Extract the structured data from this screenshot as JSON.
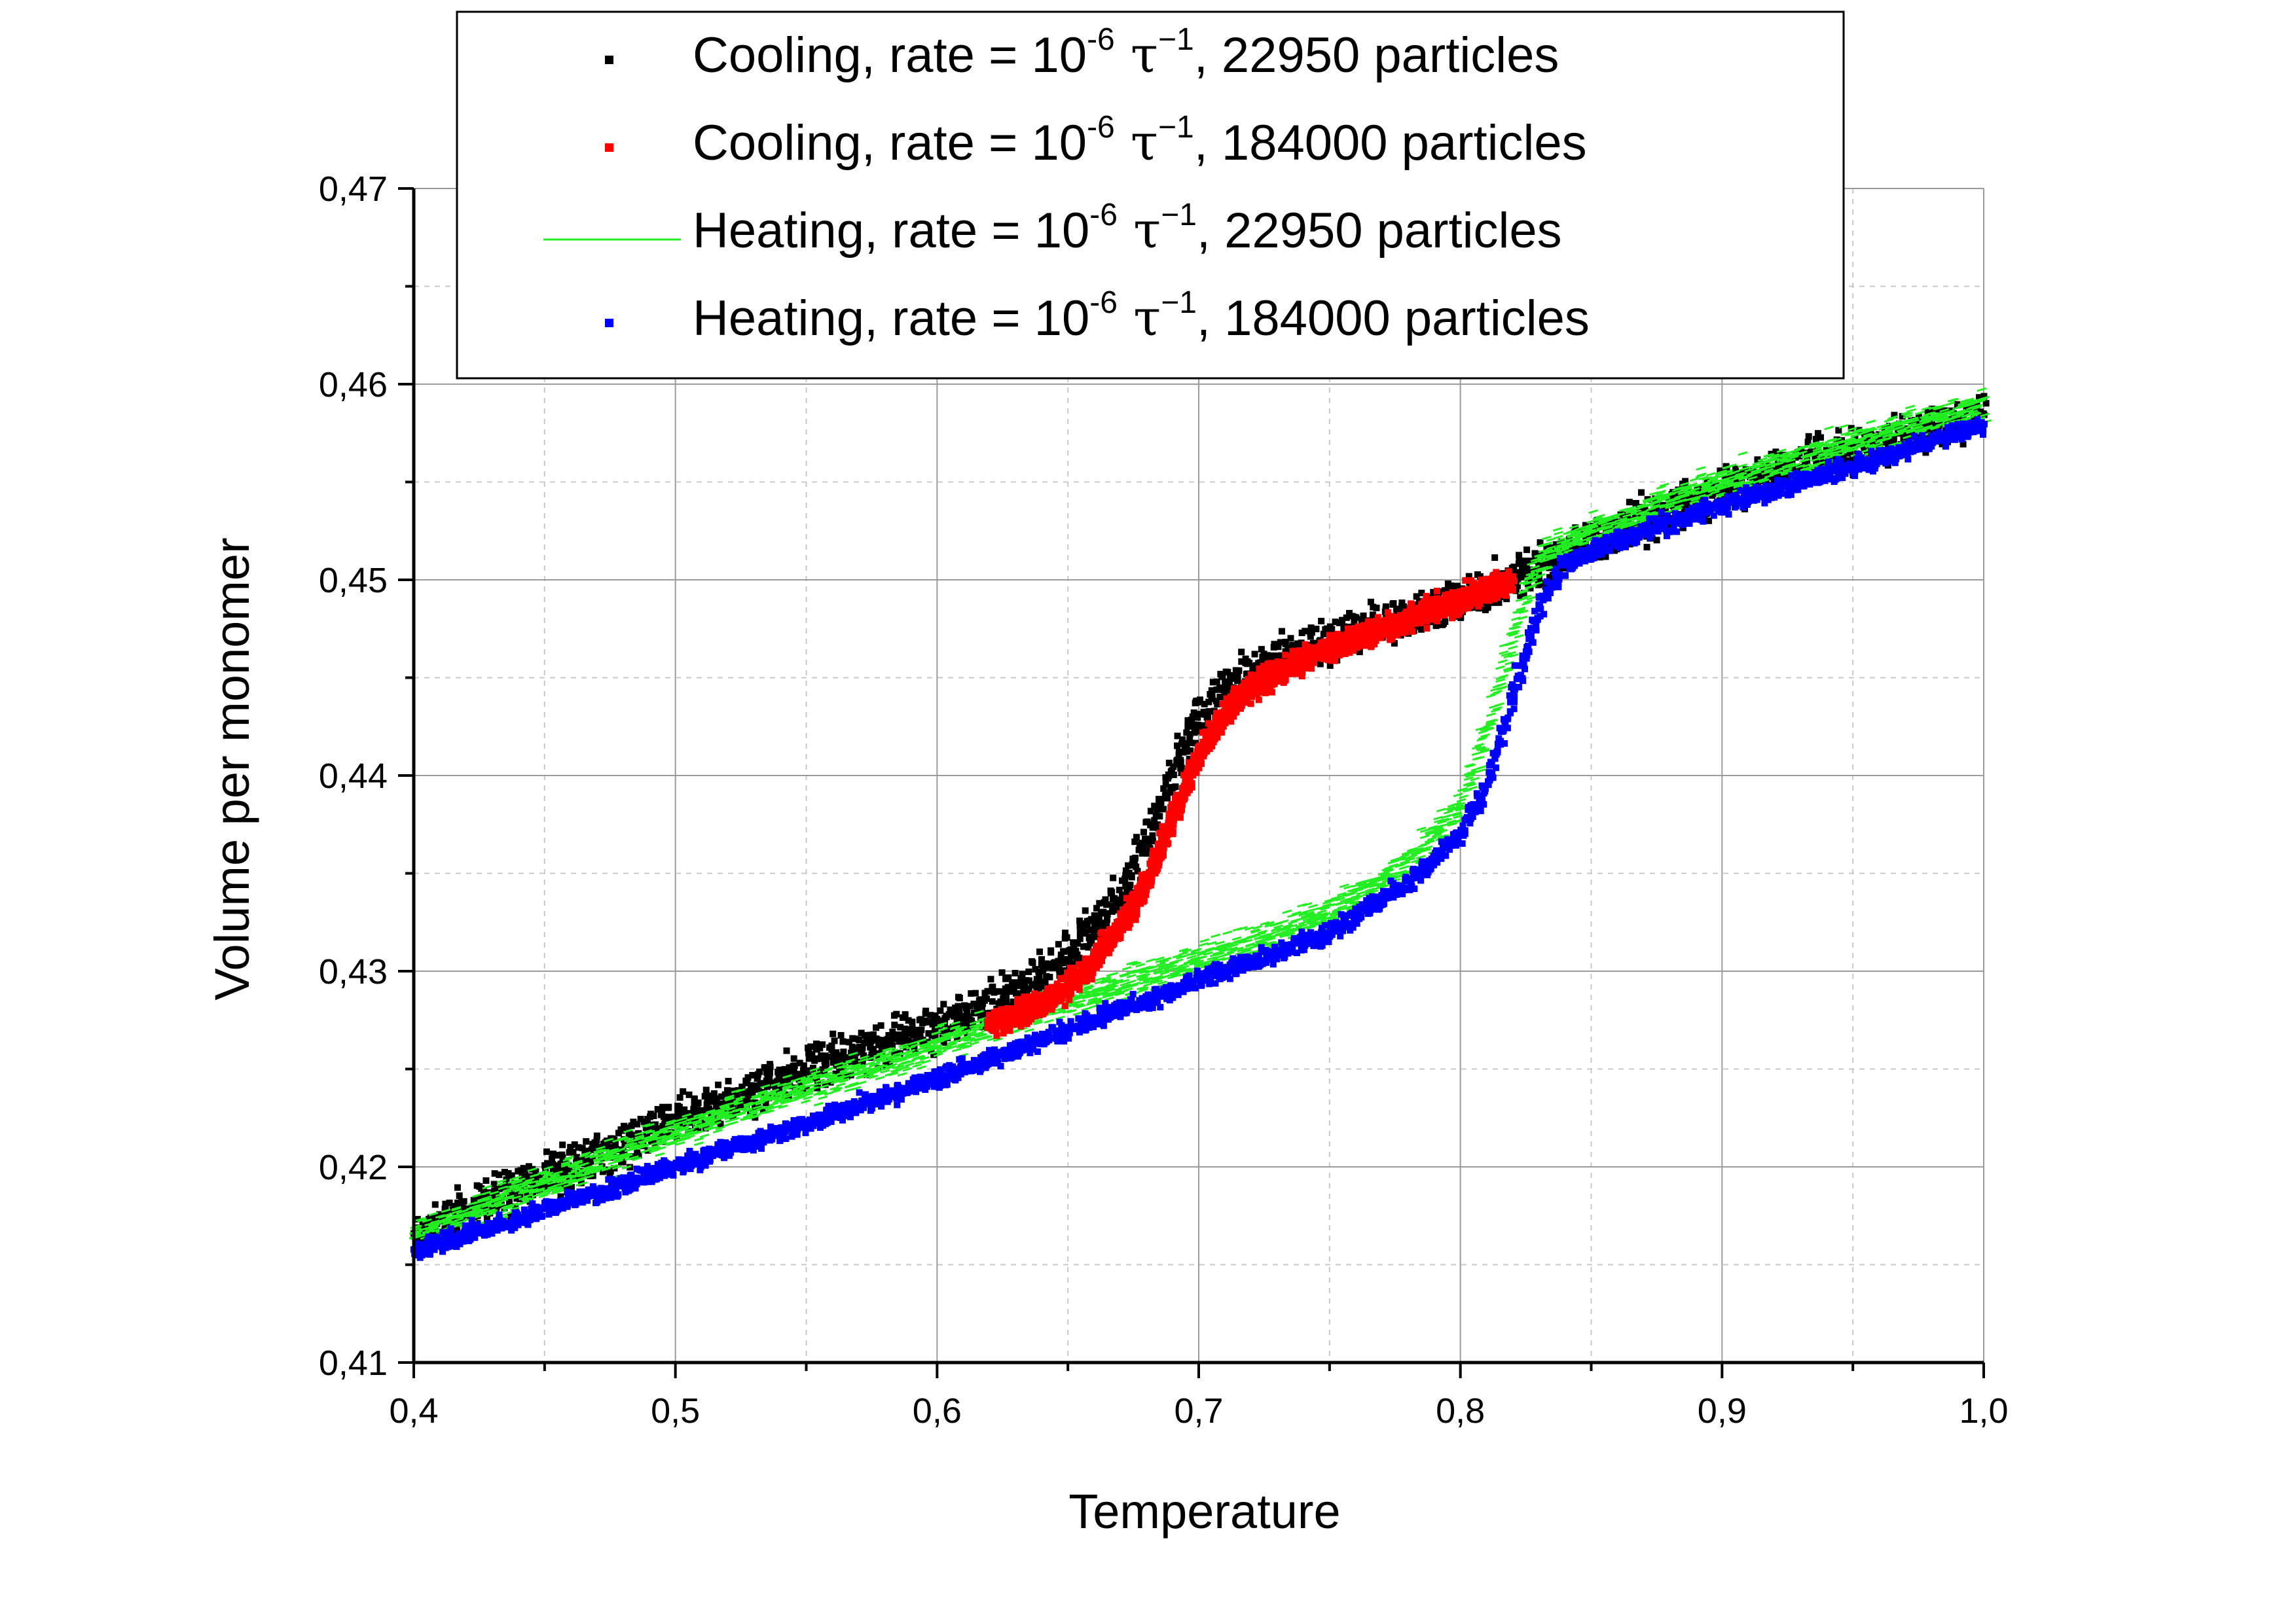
{
  "chart_data": {
    "type": "scatter",
    "title": "",
    "xlabel": "Temperature",
    "ylabel": "Volume per monomer",
    "xlim": [
      0.4,
      1.0
    ],
    "ylim": [
      0.41,
      0.47
    ],
    "xticks": [
      0.4,
      0.5,
      0.6,
      0.7,
      0.8,
      0.9,
      1.0
    ],
    "xtick_labels": [
      "0,4",
      "0,5",
      "0,6",
      "0,7",
      "0,8",
      "0,9",
      "1,0"
    ],
    "yticks": [
      0.41,
      0.42,
      0.43,
      0.44,
      0.45,
      0.46,
      0.47
    ],
    "ytick_labels": [
      "0,41",
      "0,42",
      "0,43",
      "0,44",
      "0,45",
      "0,46",
      "0,47"
    ],
    "grid": true,
    "legend_position": "top",
    "series": [
      {
        "name": "Cooling, rate = 10-6 τ−1, 22950 particles",
        "label_parts": {
          "prefix": "Cooling, rate = 10",
          "exp1": "-6",
          "tau": " τ",
          "exp2": "−1",
          "suffix": ", 22950 particles"
        },
        "color": "#000000",
        "marker": "square",
        "spread": 0.0016,
        "x": [
          0.4,
          0.45,
          0.5,
          0.55,
          0.6,
          0.62,
          0.64,
          0.66,
          0.67,
          0.68,
          0.69,
          0.7,
          0.71,
          0.72,
          0.74,
          0.76,
          0.78,
          0.8,
          0.82,
          0.84,
          0.86,
          0.9,
          0.95,
          1.0
        ],
        "y": [
          0.4165,
          0.4195,
          0.4223,
          0.425,
          0.4272,
          0.4283,
          0.4298,
          0.432,
          0.434,
          0.4368,
          0.44,
          0.4428,
          0.4445,
          0.4455,
          0.4465,
          0.4473,
          0.4482,
          0.449,
          0.45,
          0.4513,
          0.4525,
          0.4545,
          0.4567,
          0.4585
        ]
      },
      {
        "name": "Cooling, rate = 10-6 τ−1, 184000 particles",
        "label_parts": {
          "prefix": "Cooling, rate = 10",
          "exp1": "-6",
          "tau": " τ",
          "exp2": "−1",
          "suffix": ", 184000 particles"
        },
        "color": "#ff0000",
        "marker": "square",
        "spread": 0.0009,
        "x": [
          0.62,
          0.64,
          0.65,
          0.66,
          0.67,
          0.68,
          0.69,
          0.7,
          0.71,
          0.72,
          0.74,
          0.76,
          0.78,
          0.8,
          0.82
        ],
        "y": [
          0.4273,
          0.4283,
          0.4292,
          0.4305,
          0.4322,
          0.4345,
          0.4378,
          0.441,
          0.4432,
          0.4445,
          0.446,
          0.447,
          0.448,
          0.449,
          0.45
        ]
      },
      {
        "name": "Heating, rate = 10-6 τ−1, 22950 particles",
        "label_parts": {
          "prefix": "Heating, rate = 10",
          "exp1": "-6",
          "tau": " τ",
          "exp2": "−1",
          "suffix": ", 22950 particles"
        },
        "color": "#22ee22",
        "marker": "line",
        "spread": 0.0012,
        "x": [
          0.4,
          0.45,
          0.5,
          0.55,
          0.6,
          0.65,
          0.7,
          0.75,
          0.78,
          0.8,
          0.81,
          0.82,
          0.83,
          0.84,
          0.86,
          0.9,
          0.95,
          1.0
        ],
        "y": [
          0.4165,
          0.4192,
          0.4218,
          0.424,
          0.4262,
          0.4285,
          0.4305,
          0.433,
          0.4355,
          0.4385,
          0.442,
          0.447,
          0.451,
          0.452,
          0.453,
          0.455,
          0.457,
          0.459
        ]
      },
      {
        "name": "Heating, rate = 10-6 τ−1, 184000 particles",
        "label_parts": {
          "prefix": "Heating, rate = 10",
          "exp1": "-6",
          "tau": " τ",
          "exp2": "−1",
          "suffix": ", 184000 particles"
        },
        "color": "#0000ff",
        "marker": "square",
        "spread": 0.0007,
        "x": [
          0.4,
          0.45,
          0.5,
          0.55,
          0.6,
          0.65,
          0.7,
          0.75,
          0.78,
          0.8,
          0.81,
          0.82,
          0.83,
          0.84,
          0.86,
          0.9,
          0.95,
          1.0
        ],
        "y": [
          0.4157,
          0.4178,
          0.42,
          0.4222,
          0.4245,
          0.427,
          0.4295,
          0.432,
          0.4345,
          0.437,
          0.4395,
          0.444,
          0.4485,
          0.4508,
          0.452,
          0.4538,
          0.4558,
          0.458
        ]
      }
    ]
  }
}
